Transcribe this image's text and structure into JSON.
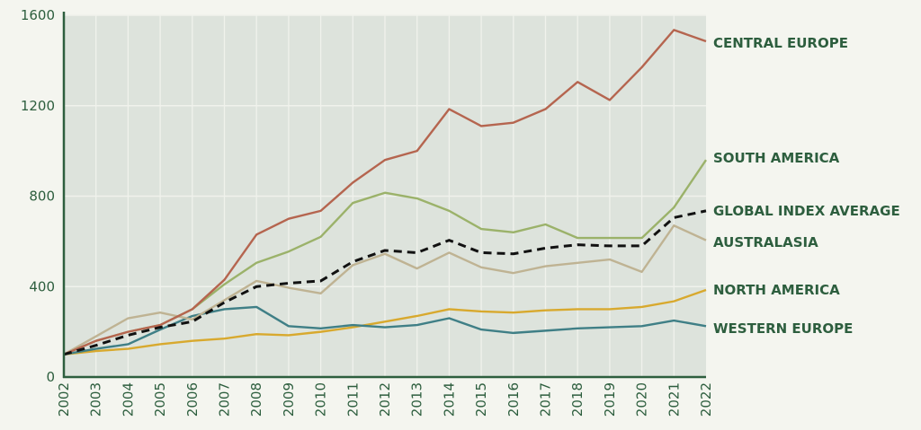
{
  "chart_data": {
    "type": "line",
    "title": "",
    "xlabel": "",
    "ylabel": "",
    "x": [
      2002,
      2003,
      2004,
      2005,
      2006,
      2007,
      2008,
      2009,
      2010,
      2011,
      2012,
      2013,
      2014,
      2015,
      2016,
      2017,
      2018,
      2019,
      2020,
      2021,
      2022
    ],
    "ylim": [
      0,
      1600
    ],
    "yticks": [
      0,
      400,
      800,
      1200,
      1600
    ],
    "grid": true,
    "legend": "direct labels at right end of lines",
    "series": [
      {
        "name": "CENTRAL EUROPE",
        "color": "#b5654f",
        "dashed": false,
        "values": [
          100,
          160,
          200,
          230,
          300,
          430,
          630,
          700,
          735,
          860,
          960,
          1000,
          1185,
          1110,
          1125,
          1185,
          1305,
          1225,
          1370,
          1535,
          1485
        ]
      },
      {
        "name": "SOUTH AMERICA",
        "color": "#9bb26a",
        "dashed": false,
        "values": [
          100,
          160,
          200,
          230,
          300,
          410,
          505,
          555,
          620,
          770,
          815,
          790,
          735,
          655,
          640,
          675,
          615,
          615,
          615,
          750,
          960
        ]
      },
      {
        "name": "GLOBAL INDEX AVERAGE",
        "color": "#111111",
        "dashed": true,
        "values": [
          100,
          140,
          185,
          220,
          245,
          330,
          400,
          415,
          425,
          510,
          560,
          550,
          605,
          550,
          545,
          570,
          585,
          580,
          580,
          705,
          735
        ]
      },
      {
        "name": "AUSTRALASIA",
        "color": "#bfb393",
        "dashed": false,
        "values": [
          100,
          180,
          260,
          285,
          255,
          340,
          425,
          395,
          370,
          495,
          545,
          480,
          550,
          485,
          460,
          490,
          505,
          520,
          465,
          670,
          605
        ]
      },
      {
        "name": "NORTH AMERICA",
        "color": "#d8a92e",
        "dashed": false,
        "values": [
          100,
          115,
          125,
          145,
          160,
          170,
          190,
          185,
          200,
          220,
          245,
          270,
          300,
          290,
          285,
          295,
          300,
          300,
          310,
          335,
          385
        ]
      },
      {
        "name": "WESTERN EUROPE",
        "color": "#3f7f86",
        "dashed": false,
        "values": [
          100,
          125,
          145,
          210,
          270,
          300,
          310,
          225,
          215,
          230,
          220,
          230,
          260,
          210,
          195,
          205,
          215,
          220,
          225,
          250,
          225
        ]
      }
    ],
    "colors": {
      "background": "#f4f5ef",
      "plot_background": "#dde3dc",
      "axis": "#2d5e3e",
      "text": "#2d5e3e"
    }
  }
}
